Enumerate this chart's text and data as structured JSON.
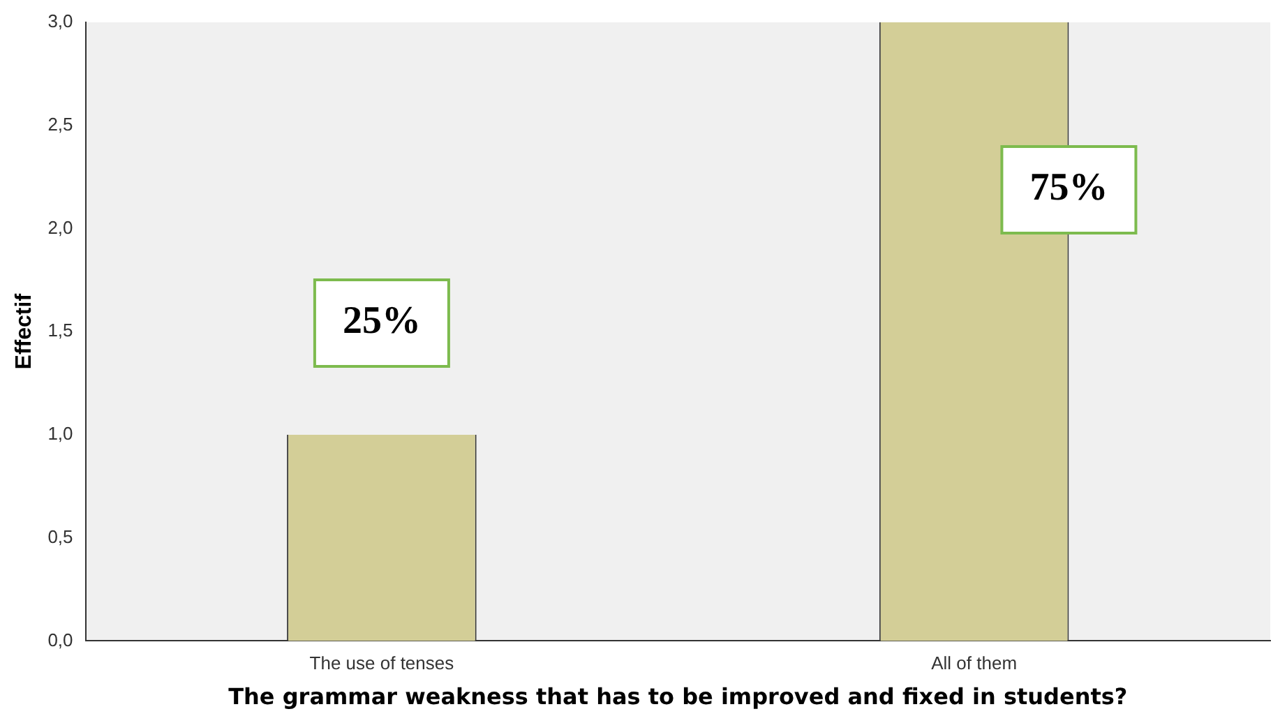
{
  "chart_data": {
    "type": "bar",
    "xlabel": "The grammar weakness that has to be improved and fixed in students?",
    "ylabel": "Effectif",
    "categories": [
      "The use of tenses",
      "All of them"
    ],
    "values": [
      1,
      3
    ],
    "color": "#d3ce97",
    "ylim": [
      0,
      3
    ],
    "yticks": [
      {
        "value": 0,
        "label": "0,0"
      },
      {
        "value": 0.5,
        "label": "0,5"
      },
      {
        "value": 1,
        "label": "1,0"
      },
      {
        "value": 1.5,
        "label": "1,5"
      },
      {
        "value": 2,
        "label": "2,0"
      },
      {
        "value": 2.5,
        "label": "2,5"
      },
      {
        "value": 3,
        "label": "3,0"
      }
    ],
    "grid": false,
    "legend": false,
    "annotations": [
      "25%",
      "75%"
    ]
  }
}
